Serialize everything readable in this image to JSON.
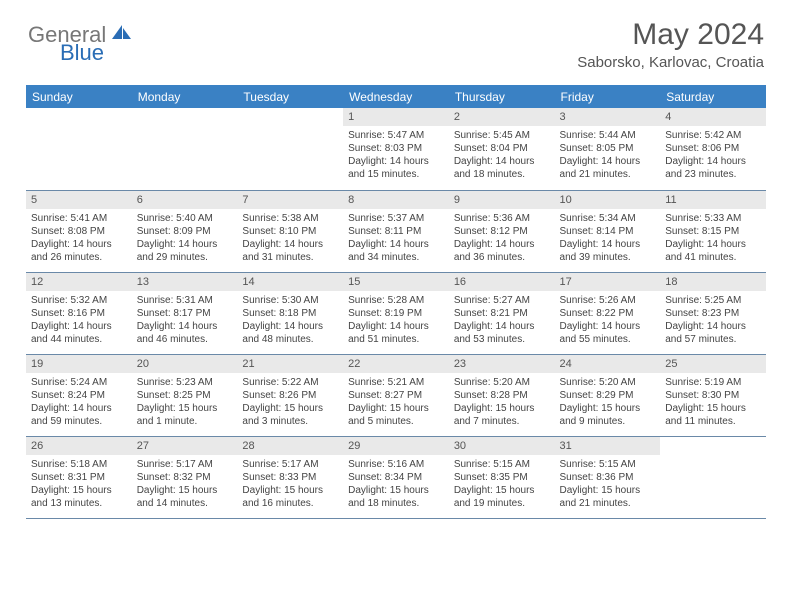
{
  "logo": {
    "text_gray": "General",
    "text_blue": "Blue"
  },
  "title": "May 2024",
  "location": "Saborsko, Karlovac, Croatia",
  "colors": {
    "header_bg": "#3a81c4",
    "header_fg": "#ffffff",
    "daynum_bg": "#e9e9e9",
    "text": "#444444",
    "border": "#6a89a8",
    "logo_gray": "#777777",
    "logo_blue": "#2a6db5"
  },
  "weekdays": [
    "Sunday",
    "Monday",
    "Tuesday",
    "Wednesday",
    "Thursday",
    "Friday",
    "Saturday"
  ],
  "weeks": [
    [
      {
        "empty": true
      },
      {
        "empty": true
      },
      {
        "empty": true
      },
      {
        "day": "1",
        "sunrise": "Sunrise: 5:47 AM",
        "sunset": "Sunset: 8:03 PM",
        "dl1": "Daylight: 14 hours",
        "dl2": "and 15 minutes."
      },
      {
        "day": "2",
        "sunrise": "Sunrise: 5:45 AM",
        "sunset": "Sunset: 8:04 PM",
        "dl1": "Daylight: 14 hours",
        "dl2": "and 18 minutes."
      },
      {
        "day": "3",
        "sunrise": "Sunrise: 5:44 AM",
        "sunset": "Sunset: 8:05 PM",
        "dl1": "Daylight: 14 hours",
        "dl2": "and 21 minutes."
      },
      {
        "day": "4",
        "sunrise": "Sunrise: 5:42 AM",
        "sunset": "Sunset: 8:06 PM",
        "dl1": "Daylight: 14 hours",
        "dl2": "and 23 minutes."
      }
    ],
    [
      {
        "day": "5",
        "sunrise": "Sunrise: 5:41 AM",
        "sunset": "Sunset: 8:08 PM",
        "dl1": "Daylight: 14 hours",
        "dl2": "and 26 minutes."
      },
      {
        "day": "6",
        "sunrise": "Sunrise: 5:40 AM",
        "sunset": "Sunset: 8:09 PM",
        "dl1": "Daylight: 14 hours",
        "dl2": "and 29 minutes."
      },
      {
        "day": "7",
        "sunrise": "Sunrise: 5:38 AM",
        "sunset": "Sunset: 8:10 PM",
        "dl1": "Daylight: 14 hours",
        "dl2": "and 31 minutes."
      },
      {
        "day": "8",
        "sunrise": "Sunrise: 5:37 AM",
        "sunset": "Sunset: 8:11 PM",
        "dl1": "Daylight: 14 hours",
        "dl2": "and 34 minutes."
      },
      {
        "day": "9",
        "sunrise": "Sunrise: 5:36 AM",
        "sunset": "Sunset: 8:12 PM",
        "dl1": "Daylight: 14 hours",
        "dl2": "and 36 minutes."
      },
      {
        "day": "10",
        "sunrise": "Sunrise: 5:34 AM",
        "sunset": "Sunset: 8:14 PM",
        "dl1": "Daylight: 14 hours",
        "dl2": "and 39 minutes."
      },
      {
        "day": "11",
        "sunrise": "Sunrise: 5:33 AM",
        "sunset": "Sunset: 8:15 PM",
        "dl1": "Daylight: 14 hours",
        "dl2": "and 41 minutes."
      }
    ],
    [
      {
        "day": "12",
        "sunrise": "Sunrise: 5:32 AM",
        "sunset": "Sunset: 8:16 PM",
        "dl1": "Daylight: 14 hours",
        "dl2": "and 44 minutes."
      },
      {
        "day": "13",
        "sunrise": "Sunrise: 5:31 AM",
        "sunset": "Sunset: 8:17 PM",
        "dl1": "Daylight: 14 hours",
        "dl2": "and 46 minutes."
      },
      {
        "day": "14",
        "sunrise": "Sunrise: 5:30 AM",
        "sunset": "Sunset: 8:18 PM",
        "dl1": "Daylight: 14 hours",
        "dl2": "and 48 minutes."
      },
      {
        "day": "15",
        "sunrise": "Sunrise: 5:28 AM",
        "sunset": "Sunset: 8:19 PM",
        "dl1": "Daylight: 14 hours",
        "dl2": "and 51 minutes."
      },
      {
        "day": "16",
        "sunrise": "Sunrise: 5:27 AM",
        "sunset": "Sunset: 8:21 PM",
        "dl1": "Daylight: 14 hours",
        "dl2": "and 53 minutes."
      },
      {
        "day": "17",
        "sunrise": "Sunrise: 5:26 AM",
        "sunset": "Sunset: 8:22 PM",
        "dl1": "Daylight: 14 hours",
        "dl2": "and 55 minutes."
      },
      {
        "day": "18",
        "sunrise": "Sunrise: 5:25 AM",
        "sunset": "Sunset: 8:23 PM",
        "dl1": "Daylight: 14 hours",
        "dl2": "and 57 minutes."
      }
    ],
    [
      {
        "day": "19",
        "sunrise": "Sunrise: 5:24 AM",
        "sunset": "Sunset: 8:24 PM",
        "dl1": "Daylight: 14 hours",
        "dl2": "and 59 minutes."
      },
      {
        "day": "20",
        "sunrise": "Sunrise: 5:23 AM",
        "sunset": "Sunset: 8:25 PM",
        "dl1": "Daylight: 15 hours",
        "dl2": "and 1 minute."
      },
      {
        "day": "21",
        "sunrise": "Sunrise: 5:22 AM",
        "sunset": "Sunset: 8:26 PM",
        "dl1": "Daylight: 15 hours",
        "dl2": "and 3 minutes."
      },
      {
        "day": "22",
        "sunrise": "Sunrise: 5:21 AM",
        "sunset": "Sunset: 8:27 PM",
        "dl1": "Daylight: 15 hours",
        "dl2": "and 5 minutes."
      },
      {
        "day": "23",
        "sunrise": "Sunrise: 5:20 AM",
        "sunset": "Sunset: 8:28 PM",
        "dl1": "Daylight: 15 hours",
        "dl2": "and 7 minutes."
      },
      {
        "day": "24",
        "sunrise": "Sunrise: 5:20 AM",
        "sunset": "Sunset: 8:29 PM",
        "dl1": "Daylight: 15 hours",
        "dl2": "and 9 minutes."
      },
      {
        "day": "25",
        "sunrise": "Sunrise: 5:19 AM",
        "sunset": "Sunset: 8:30 PM",
        "dl1": "Daylight: 15 hours",
        "dl2": "and 11 minutes."
      }
    ],
    [
      {
        "day": "26",
        "sunrise": "Sunrise: 5:18 AM",
        "sunset": "Sunset: 8:31 PM",
        "dl1": "Daylight: 15 hours",
        "dl2": "and 13 minutes."
      },
      {
        "day": "27",
        "sunrise": "Sunrise: 5:17 AM",
        "sunset": "Sunset: 8:32 PM",
        "dl1": "Daylight: 15 hours",
        "dl2": "and 14 minutes."
      },
      {
        "day": "28",
        "sunrise": "Sunrise: 5:17 AM",
        "sunset": "Sunset: 8:33 PM",
        "dl1": "Daylight: 15 hours",
        "dl2": "and 16 minutes."
      },
      {
        "day": "29",
        "sunrise": "Sunrise: 5:16 AM",
        "sunset": "Sunset: 8:34 PM",
        "dl1": "Daylight: 15 hours",
        "dl2": "and 18 minutes."
      },
      {
        "day": "30",
        "sunrise": "Sunrise: 5:15 AM",
        "sunset": "Sunset: 8:35 PM",
        "dl1": "Daylight: 15 hours",
        "dl2": "and 19 minutes."
      },
      {
        "day": "31",
        "sunrise": "Sunrise: 5:15 AM",
        "sunset": "Sunset: 8:36 PM",
        "dl1": "Daylight: 15 hours",
        "dl2": "and 21 minutes."
      },
      {
        "empty": true
      }
    ]
  ]
}
